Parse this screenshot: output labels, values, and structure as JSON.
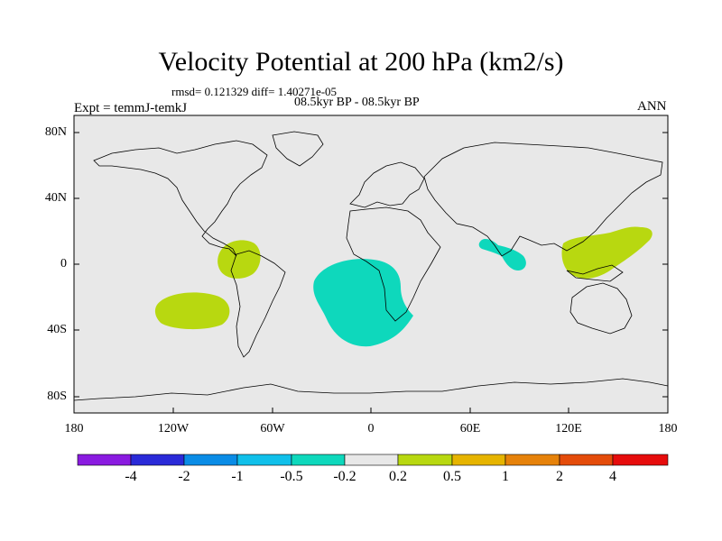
{
  "title": "Velocity Potential at 200 hPa (km2/s)",
  "stats": "rmsd= 0.121329 diff= 1.40271e-05",
  "period": "08.5kyr BP - 08.5kyr BP",
  "experiment": "Expt = temmJ-temkJ",
  "season": "ANN",
  "y_ticks": [
    "80N",
    "40N",
    "0",
    "40S",
    "80S"
  ],
  "x_ticks": [
    "180",
    "120W",
    "60W",
    "0",
    "60E",
    "120E",
    "180"
  ],
  "colorbar": {
    "colors": [
      "#8a1be0",
      "#2a2ad8",
      "#0a8ce6",
      "#10c0ea",
      "#0ed8bc",
      "#e8e8e8",
      "#b8d810",
      "#e6b400",
      "#e6820a",
      "#e44c0a",
      "#e60c0c"
    ],
    "labels": [
      "-4",
      "-2",
      "-1",
      "-0.5",
      "-0.2",
      "0.2",
      "0.5",
      "1",
      "2",
      "4"
    ]
  },
  "colors": {
    "map_background": "#e8e8e8",
    "positive_fill": "#b8d810",
    "negative_fill": "#0ed8bc",
    "coastline": "#000000"
  }
}
